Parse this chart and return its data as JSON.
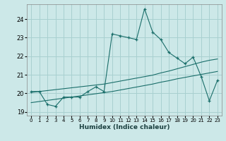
{
  "xlabel": "Humidex (Indice chaleur)",
  "background_color": "#cce8e8",
  "grid_color": "#a8d0d0",
  "line_color": "#1a6e6a",
  "x_data": [
    0,
    1,
    2,
    3,
    4,
    5,
    6,
    7,
    8,
    9,
    10,
    11,
    12,
    13,
    14,
    15,
    16,
    17,
    18,
    19,
    20,
    21,
    22,
    23
  ],
  "y_main": [
    20.1,
    20.1,
    19.4,
    19.3,
    19.8,
    19.8,
    19.8,
    20.1,
    20.35,
    20.1,
    23.2,
    23.1,
    23.0,
    22.9,
    24.55,
    23.3,
    22.9,
    22.2,
    21.9,
    21.6,
    21.95,
    20.9,
    19.6,
    20.7
  ],
  "y_trend1": [
    20.05,
    20.1,
    20.15,
    20.2,
    20.25,
    20.3,
    20.35,
    20.4,
    20.45,
    20.5,
    20.58,
    20.66,
    20.74,
    20.82,
    20.9,
    20.98,
    21.1,
    21.2,
    21.32,
    21.44,
    21.56,
    21.68,
    21.78,
    21.85
  ],
  "y_trend2": [
    19.5,
    19.56,
    19.62,
    19.68,
    19.74,
    19.8,
    19.86,
    19.92,
    19.98,
    20.04,
    20.1,
    20.18,
    20.26,
    20.34,
    20.42,
    20.5,
    20.6,
    20.68,
    20.78,
    20.86,
    20.94,
    21.02,
    21.1,
    21.18
  ],
  "ylim": [
    18.8,
    24.8
  ],
  "xlim": [
    -0.5,
    23.5
  ],
  "yticks": [
    19,
    20,
    21,
    22,
    23,
    24
  ],
  "xticks": [
    0,
    1,
    2,
    3,
    4,
    5,
    6,
    7,
    8,
    9,
    10,
    11,
    12,
    13,
    14,
    15,
    16,
    17,
    18,
    19,
    20,
    21,
    22,
    23
  ]
}
